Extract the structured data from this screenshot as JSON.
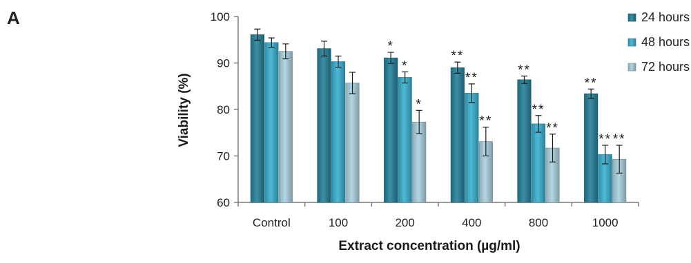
{
  "panel_label": "A",
  "chart_data": {
    "type": "bar",
    "title": "",
    "xlabel": "Extract concentration (µg/ml)",
    "ylabel": "Viability (%)",
    "ylim": [
      60,
      100
    ],
    "yticks": [
      60,
      70,
      80,
      90,
      100
    ],
    "categories": [
      "Control",
      "100",
      "200",
      "400",
      "800",
      "1000"
    ],
    "grid": false,
    "legend_position": "top-right",
    "series": [
      {
        "name": "24 hours",
        "color": "#237f98",
        "values": [
          96.1,
          93.1,
          91.1,
          89.0,
          86.4,
          83.4
        ],
        "errors": [
          1.2,
          1.6,
          1.2,
          1.2,
          0.8,
          1.0
        ],
        "significance": [
          "",
          "",
          "*",
          "**",
          "**",
          "**"
        ]
      },
      {
        "name": "48 hours",
        "color": "#38afcf",
        "values": [
          94.4,
          90.3,
          86.9,
          83.5,
          76.9,
          70.3
        ],
        "errors": [
          1.0,
          1.2,
          1.2,
          2.0,
          1.8,
          2.0
        ],
        "significance": [
          "",
          "",
          "*",
          "**",
          "**",
          "**"
        ]
      },
      {
        "name": "72 hours",
        "color": "#a9d0de",
        "values": [
          92.5,
          85.7,
          77.3,
          73.1,
          71.7,
          69.3
        ],
        "errors": [
          1.6,
          2.3,
          2.5,
          3.1,
          3.0,
          3.0
        ],
        "significance": [
          "",
          "",
          "*",
          "**",
          "**",
          "**"
        ]
      }
    ]
  }
}
